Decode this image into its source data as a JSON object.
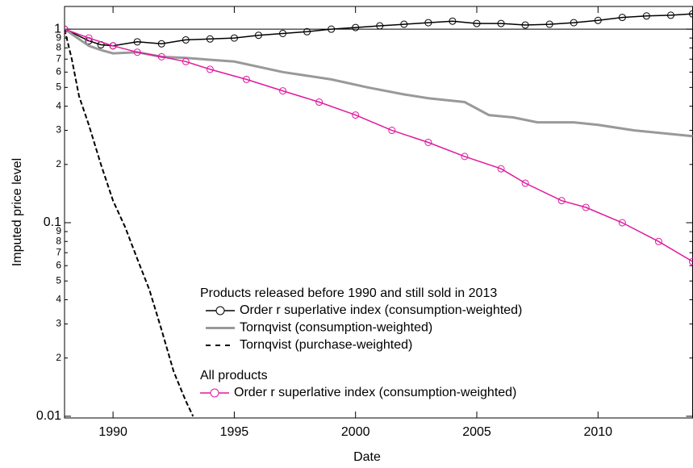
{
  "chart_data": {
    "type": "line",
    "x_label": "Date",
    "y_label": "Imputed price level",
    "log_y": true,
    "reference_line": 1,
    "xlim": [
      1988,
      2013.9
    ],
    "ylim": [
      0.0098,
      1.31
    ],
    "xticks": [
      1990,
      1995,
      2000,
      2005,
      2010
    ],
    "yticks": [
      1,
      {
        "value": 0.9,
        "label": "9"
      },
      {
        "value": 0.8,
        "label": "8"
      },
      {
        "value": 0.7,
        "label": "7"
      },
      {
        "value": 0.6,
        "label": "6"
      },
      {
        "value": 0.5,
        "label": "5"
      },
      {
        "value": 0.4,
        "label": "4"
      },
      {
        "value": 0.3,
        "label": "3"
      },
      {
        "value": 0.2,
        "label": "2"
      },
      0.1,
      {
        "value": 0.09,
        "label": "9"
      },
      {
        "value": 0.08,
        "label": "8"
      },
      {
        "value": 0.07,
        "label": "7"
      },
      {
        "value": 0.06,
        "label": "6"
      },
      {
        "value": 0.05,
        "label": "5"
      },
      {
        "value": 0.04,
        "label": "4"
      },
      {
        "value": 0.03,
        "label": "3"
      },
      {
        "value": 0.02,
        "label": "2"
      },
      0.01
    ],
    "legend_titles": [
      "Products released before 1990 and still sold in 2013",
      "All products"
    ],
    "series": [
      {
        "name": "Order r superlative index (consumption-weighted)",
        "color": "#000000",
        "marker": "circle",
        "dash": false,
        "legend_group": 0,
        "x": [
          1988,
          1989,
          1989.5,
          1990,
          1991,
          1992,
          1993,
          1994,
          1995,
          1996,
          1997,
          1998,
          1999,
          2000,
          2001,
          2002,
          2003,
          2004,
          2005,
          2006,
          2007,
          2008,
          2009,
          2010,
          2011,
          2012,
          2013,
          2013.9
        ],
        "values": [
          1,
          0.87,
          0.83,
          0.82,
          0.86,
          0.84,
          0.88,
          0.89,
          0.9,
          0.93,
          0.95,
          0.97,
          1.0,
          1.02,
          1.04,
          1.06,
          1.08,
          1.1,
          1.07,
          1.07,
          1.05,
          1.06,
          1.08,
          1.11,
          1.15,
          1.17,
          1.18,
          1.2
        ]
      },
      {
        "name": "Tornqvist (consumption-weighted)",
        "color": "#999999",
        "marker": "none",
        "dash": false,
        "legend_group": 0,
        "x": [
          1988,
          1989,
          1989.5,
          1990,
          1991,
          1992,
          1993,
          1995,
          1997,
          1999,
          2000.5,
          2002,
          2003,
          2004.5,
          2005.5,
          2006.5,
          2007.5,
          2009,
          2010,
          2011.5,
          2013.9
        ],
        "values": [
          1,
          0.82,
          0.78,
          0.75,
          0.76,
          0.72,
          0.71,
          0.68,
          0.6,
          0.55,
          0.5,
          0.46,
          0.44,
          0.42,
          0.36,
          0.35,
          0.33,
          0.33,
          0.32,
          0.3,
          0.28
        ]
      },
      {
        "name": "Tornqvist (purchase-weighted)",
        "color": "#000000",
        "marker": "none",
        "dash": true,
        "legend_group": 0,
        "x": [
          1988,
          1988.3,
          1988.6,
          1989,
          1989.5,
          1990,
          1990.5,
          1991,
          1991.5,
          1992,
          1992.5,
          1993,
          1993.3
        ],
        "values": [
          1,
          0.7,
          0.45,
          0.32,
          0.2,
          0.13,
          0.095,
          0.065,
          0.045,
          0.028,
          0.017,
          0.012,
          0.01
        ]
      },
      {
        "name": "Order r superlative index (consumption-weighted)",
        "color": "#e0199e",
        "marker": "circle",
        "dash": false,
        "legend_group": 1,
        "x": [
          1988,
          1989,
          1990,
          1991,
          1992,
          1993,
          1994,
          1995.5,
          1997,
          1998.5,
          2000,
          2001.5,
          2003,
          2004.5,
          2006,
          2007,
          2008.5,
          2009.5,
          2011,
          2012.5,
          2013.9
        ],
        "values": [
          1,
          0.9,
          0.82,
          0.76,
          0.72,
          0.68,
          0.62,
          0.55,
          0.48,
          0.42,
          0.36,
          0.3,
          0.26,
          0.22,
          0.19,
          0.16,
          0.13,
          0.12,
          0.1,
          0.08,
          0.063
        ]
      }
    ]
  }
}
